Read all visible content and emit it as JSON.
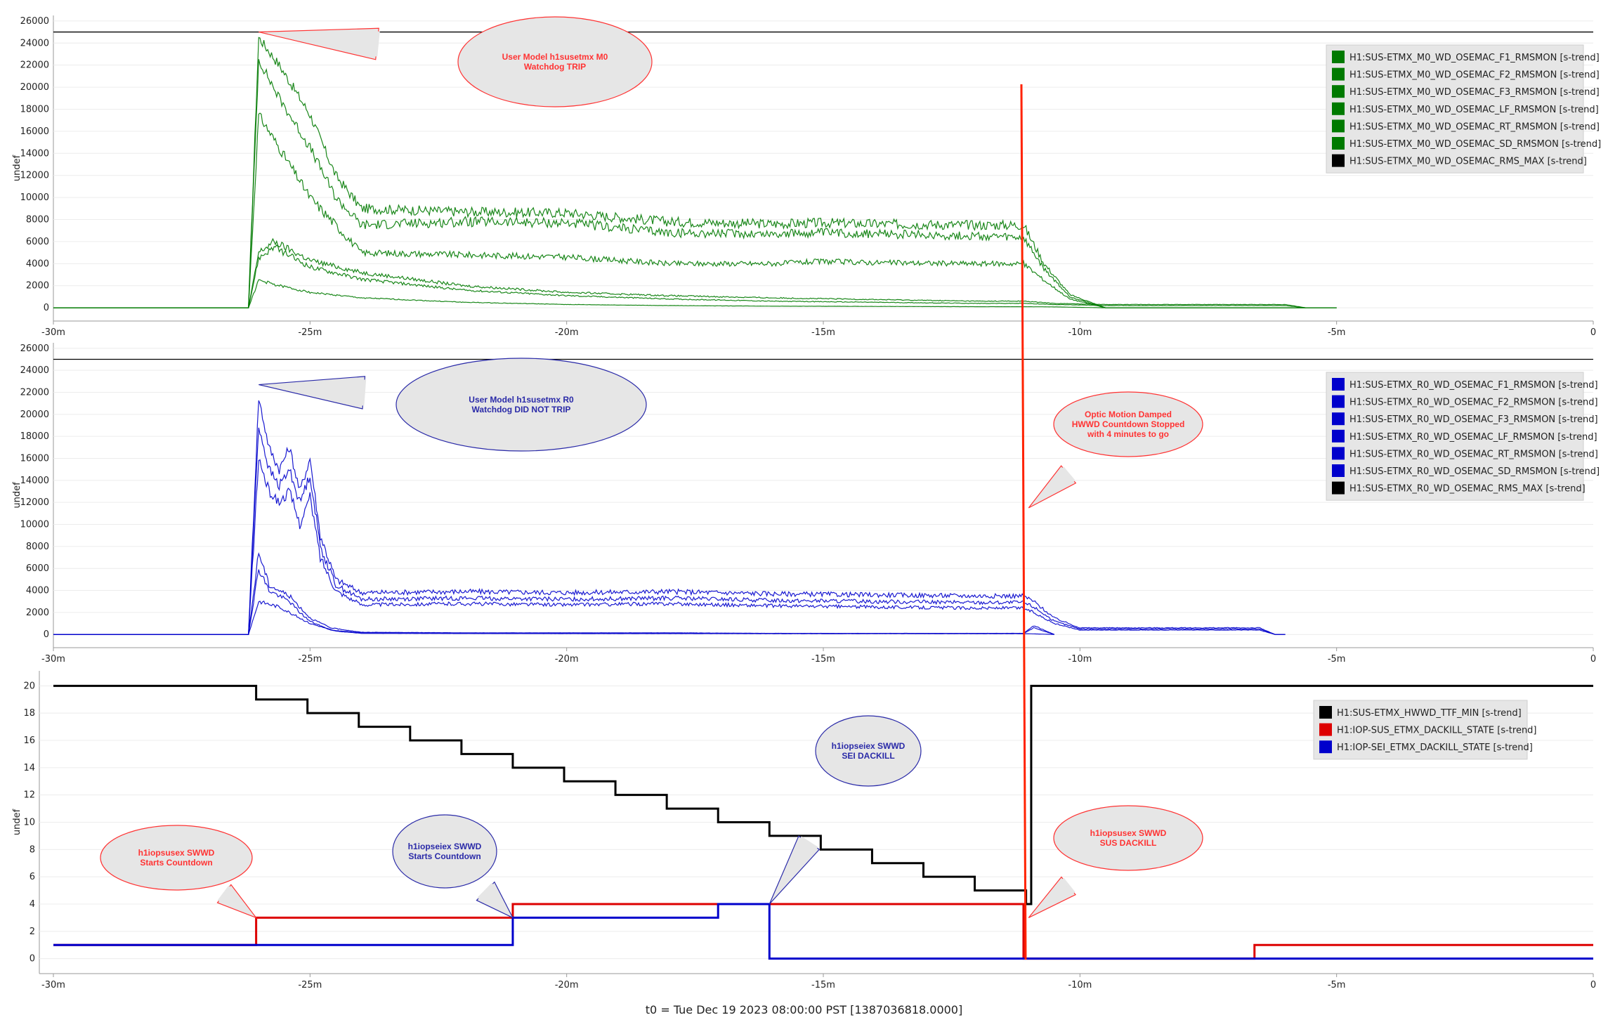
{
  "footer": "t0 = Tue Dec 19 2023 08:00:00 PST [1387036818.0000]",
  "chart_data": [
    {
      "type": "line",
      "panel": "top",
      "ylabel": "undef",
      "x_ticks": [
        "-30m",
        "-25m",
        "-20m",
        "-15m",
        "-10m",
        "-5m",
        "0"
      ],
      "xlim": [
        -30,
        0
      ],
      "y_ticks": [
        "0",
        "2000",
        "4000",
        "6000",
        "8000",
        "10000",
        "12000",
        "14000",
        "16000",
        "18000",
        "20000",
        "22000",
        "24000",
        "26000"
      ],
      "ylim": [
        -1200,
        26500
      ],
      "reference_line": 25000,
      "legend_position": "top-right",
      "series": [
        {
          "name": "H1:SUS-ETMX_M0_WD_OSEMAC_F1_RMSMON [s-trend]",
          "color": "#007a00",
          "x": [
            -30,
            -26.2,
            -26,
            -25.6,
            -25,
            -24.5,
            -24,
            -22,
            -20,
            -18,
            -16,
            -15,
            -14,
            -12,
            -11.1,
            -10.7,
            -10.2,
            -9.5,
            -6,
            -5
          ],
          "y": [
            0,
            0,
            24500,
            22000,
            17500,
            12000,
            9000,
            8700,
            8600,
            7800,
            7600,
            7700,
            7600,
            7500,
            7500,
            4000,
            1200,
            0,
            0,
            0
          ]
        },
        {
          "name": "H1:SUS-ETMX_M0_WD_OSEMAC_F2_RMSMON [s-trend]",
          "color": "#007a00",
          "x": [
            -30,
            -26.2,
            -26,
            -25.6,
            -25,
            -24.5,
            -24,
            -22,
            -20,
            -18,
            -16,
            -15,
            -14,
            -12,
            -11.1,
            -10.7,
            -10.2,
            -9.5,
            -6,
            -5
          ],
          "y": [
            0,
            0,
            22500,
            19000,
            14500,
            10000,
            7500,
            7800,
            7700,
            6800,
            6700,
            6800,
            6700,
            6500,
            6300,
            3500,
            1000,
            0,
            0,
            0
          ]
        },
        {
          "name": "H1:SUS-ETMX_M0_WD_OSEMAC_F3_RMSMON [s-trend]",
          "color": "#007a00",
          "x": [
            -30,
            -26.2,
            -26,
            -25.6,
            -25,
            -24.5,
            -24,
            -22,
            -20,
            -18,
            -16,
            -15,
            -14,
            -12,
            -11.1,
            -10.7,
            -10.2,
            -9.5,
            -6,
            -5
          ],
          "y": [
            0,
            0,
            17500,
            14500,
            10000,
            7500,
            5000,
            4800,
            4600,
            4000,
            4000,
            4200,
            4100,
            4000,
            4000,
            2500,
            800,
            0,
            0,
            0
          ]
        },
        {
          "name": "H1:SUS-ETMX_M0_WD_OSEMAC_LF_RMSMON [s-trend]",
          "color": "#007a00",
          "x": [
            -30,
            -26.2,
            -26,
            -25.7,
            -25,
            -24,
            -22,
            -20,
            -18,
            -16,
            -12,
            -11.1,
            -10.5,
            -9.5,
            -6,
            -5.6
          ],
          "y": [
            0,
            0,
            5000,
            6000,
            4300,
            3200,
            2000,
            1400,
            1100,
            900,
            600,
            600,
            400,
            300,
            300,
            0
          ]
        },
        {
          "name": "H1:SUS-ETMX_M0_WD_OSEMAC_RT_RMSMON [s-trend]",
          "color": "#007a00",
          "x": [
            -30,
            -26.2,
            -26,
            -25.7,
            -25,
            -24,
            -22,
            -20,
            -18,
            -16,
            -12,
            -11.1,
            -10.5,
            -9.5,
            -6,
            -5.6
          ],
          "y": [
            0,
            0,
            4500,
            5500,
            3700,
            2600,
            1600,
            1100,
            800,
            600,
            400,
            400,
            300,
            200,
            200,
            0
          ]
        },
        {
          "name": "H1:SUS-ETMX_M0_WD_OSEMAC_SD_RMSMON [s-trend]",
          "color": "#007a00",
          "x": [
            -30,
            -26.2,
            -26,
            -25.6,
            -25,
            -24,
            -22,
            -20,
            -18,
            -16,
            -12,
            -11.1,
            -10.5,
            -9.5
          ],
          "y": [
            0,
            0,
            2500,
            2000,
            1400,
            900,
            500,
            300,
            200,
            150,
            100,
            100,
            80,
            0
          ]
        },
        {
          "name": "H1:SUS-ETMX_M0_WD_OSEMAC_RMS_MAX [s-trend]",
          "color": "#000000",
          "x": [],
          "y": []
        }
      ]
    },
    {
      "type": "line",
      "panel": "middle",
      "ylabel": "undef",
      "x_ticks": [
        "-30m",
        "-25m",
        "-20m",
        "-15m",
        "-10m",
        "-5m",
        "0"
      ],
      "xlim": [
        -30,
        0
      ],
      "y_ticks": [
        "0",
        "2000",
        "4000",
        "6000",
        "8000",
        "10000",
        "12000",
        "14000",
        "16000",
        "18000",
        "20000",
        "22000",
        "24000",
        "26000"
      ],
      "ylim": [
        -1200,
        26500
      ],
      "reference_line": 25000,
      "legend_position": "top-right",
      "series": [
        {
          "name": "H1:SUS-ETMX_R0_WD_OSEMAC_F1_RMSMON [s-trend]",
          "color": "#0000cc",
          "x": [
            -30,
            -26.2,
            -26,
            -25.8,
            -25.6,
            -25.4,
            -25.2,
            -25,
            -24.8,
            -24.5,
            -24,
            -22,
            -20,
            -18,
            -16,
            -14,
            -12,
            -11.1,
            -10.9,
            -10.5,
            -10,
            -8,
            -6.5,
            -6.2,
            -6
          ],
          "y": [
            0,
            0,
            21500,
            17000,
            15000,
            17000,
            13000,
            16000,
            9000,
            5000,
            3800,
            3900,
            3800,
            3900,
            3700,
            3600,
            3500,
            3500,
            3000,
            1500,
            600,
            600,
            600,
            0,
            0
          ]
        },
        {
          "name": "H1:SUS-ETMX_R0_WD_OSEMAC_F2_RMSMON [s-trend]",
          "color": "#0000cc",
          "x": [
            -30,
            -26.2,
            -26,
            -25.8,
            -25.6,
            -25.4,
            -25.2,
            -25,
            -24.8,
            -24.5,
            -24,
            -22,
            -20,
            -18,
            -16,
            -14,
            -12,
            -11.1,
            -10.9,
            -10.5,
            -10,
            -8,
            -6.5,
            -6.2,
            -6
          ],
          "y": [
            0,
            0,
            19000,
            15000,
            13500,
            15000,
            12000,
            14500,
            8000,
            4500,
            3200,
            3300,
            3200,
            3300,
            3100,
            3000,
            2900,
            2900,
            2500,
            1200,
            500,
            500,
            500,
            0,
            0
          ]
        },
        {
          "name": "H1:SUS-ETMX_R0_WD_OSEMAC_F3_RMSMON [s-trend]",
          "color": "#0000cc",
          "x": [
            -30,
            -26.2,
            -26,
            -25.8,
            -25.6,
            -25.4,
            -25.2,
            -25,
            -24.8,
            -24.5,
            -24,
            -22,
            -20,
            -18,
            -16,
            -14,
            -12,
            -11.1,
            -10.9,
            -10.5,
            -10,
            -8,
            -6.5,
            -6.2,
            -6
          ],
          "y": [
            0,
            0,
            16000,
            13000,
            12000,
            13000,
            10000,
            12500,
            7000,
            4000,
            2700,
            2800,
            2700,
            2800,
            2600,
            2500,
            2400,
            2400,
            2000,
            1000,
            400,
            400,
            400,
            0,
            0
          ]
        },
        {
          "name": "H1:SUS-ETMX_R0_WD_OSEMAC_LF_RMSMON [s-trend]",
          "color": "#0000cc",
          "x": [
            -30,
            -26.2,
            -26,
            -25.8,
            -25.6,
            -25.4,
            -25.2,
            -25,
            -24.6,
            -24,
            -22,
            -20,
            -18,
            -16,
            -12,
            -11.1,
            -10.9,
            -10.5
          ],
          "y": [
            0,
            0,
            7500,
            4500,
            4000,
            3500,
            2500,
            1500,
            600,
            200,
            150,
            150,
            150,
            100,
            100,
            100,
            800,
            0
          ]
        },
        {
          "name": "H1:SUS-ETMX_R0_WD_OSEMAC_RT_RMSMON [s-trend]",
          "color": "#0000cc",
          "x": [
            -30,
            -26.2,
            -26,
            -25.8,
            -25.6,
            -25.4,
            -25.2,
            -25,
            -24.6,
            -24,
            -22,
            -20,
            -18,
            -16,
            -12,
            -11.1,
            -10.9,
            -10.5
          ],
          "y": [
            0,
            0,
            6000,
            4000,
            3500,
            3000,
            2000,
            1200,
            400,
            150,
            100,
            100,
            100,
            80,
            80,
            80,
            600,
            0
          ]
        },
        {
          "name": "H1:SUS-ETMX_R0_WD_OSEMAC_SD_RMSMON [s-trend]",
          "color": "#0000cc",
          "x": [
            -30,
            -26.2,
            -26,
            -25.6,
            -25,
            -24.5,
            -24,
            -20,
            -16,
            -12,
            -11.1,
            -10.5
          ],
          "y": [
            0,
            0,
            3000,
            2500,
            1000,
            300,
            100,
            80,
            80,
            80,
            80,
            0
          ]
        },
        {
          "name": "H1:SUS-ETMX_R0_WD_OSEMAC_RMS_MAX [s-trend]",
          "color": "#000000",
          "x": [],
          "y": []
        }
      ]
    },
    {
      "type": "line",
      "panel": "bottom",
      "ylabel": "undef",
      "x_ticks": [
        "-30m",
        "-25m",
        "-20m",
        "-15m",
        "-10m",
        "-5m",
        "0"
      ],
      "xlim": [
        -30,
        0
      ],
      "y_ticks": [
        "0",
        "2",
        "4",
        "6",
        "8",
        "10",
        "12",
        "14",
        "16",
        "18",
        "20"
      ],
      "ylim": [
        -1.1,
        21.1
      ],
      "legend_position": "top-right",
      "series": [
        {
          "name": "H1:SUS-ETMX_HWWD_TTF_MIN [s-trend]",
          "color": "#000000",
          "step": true,
          "x": [
            -30,
            -26.05,
            -25.05,
            -24.05,
            -23.05,
            -22.05,
            -21.05,
            -20.05,
            -19.05,
            -18.05,
            -17.05,
            -16.05,
            -15.05,
            -14.05,
            -13.05,
            -12.05,
            -11.05,
            -10.95,
            -10.95,
            0
          ],
          "y": [
            20,
            19,
            18,
            17,
            16,
            15,
            14,
            13,
            12,
            11,
            10,
            9,
            8,
            7,
            6,
            5,
            4,
            4,
            20,
            20
          ]
        },
        {
          "name": "H1:IOP-SUS_ETMX_DACKILL_STATE [s-trend]",
          "color": "#dd0000",
          "step": true,
          "x": [
            -30,
            -26.05,
            -21.05,
            -11.1,
            -6.6,
            0
          ],
          "y": [
            1,
            3,
            4,
            0,
            1,
            1
          ]
        },
        {
          "name": "H1:IOP-SEI_ETMX_DACKILL_STATE [s-trend]",
          "color": "#0000cc",
          "step": true,
          "x": [
            -30,
            -21.05,
            -17.05,
            -16.05,
            0
          ],
          "y": [
            1,
            3,
            4,
            0,
            0
          ]
        }
      ]
    }
  ],
  "event_line": {
    "x": -11.1,
    "color": "#ff2200"
  },
  "annotations": [
    {
      "text": "User Model h1susetmx M0\nWatchdog TRIP",
      "color": "#ff3333",
      "panel": 0,
      "anchor_x": -26.0,
      "anchor_y": 25000
    },
    {
      "text": "User Model h1susetmx R0\nWatchdog DID NOT TRIP",
      "color": "#2a2aa8",
      "panel": 1,
      "anchor_x": -26.0,
      "anchor_y": 22700
    },
    {
      "text": "Optic Motion Damped\nHWWD Countdown Stopped\nwith 4 minutes to go",
      "color": "#ff3333",
      "panel": 1,
      "anchor_x": -11.0,
      "anchor_y": 11500
    },
    {
      "text": "h1iopsusex SWWD\nStarts Countdown",
      "color": "#ff3333",
      "panel": 2,
      "anchor_x": -26.05,
      "anchor_y": 3
    },
    {
      "text": "h1iopseiex SWWD\nStarts Countdown",
      "color": "#2a2aa8",
      "panel": 2,
      "anchor_x": -21.05,
      "anchor_y": 3
    },
    {
      "text": "h1iopseiex SWWD\nSEI DACKILL",
      "color": "#2a2aa8",
      "panel": 2,
      "anchor_x": -16.05,
      "anchor_y": 4
    },
    {
      "text": "h1iopsusex SWWD\nSUS DACKILL",
      "color": "#ff3333",
      "panel": 2,
      "anchor_x": -11.0,
      "anchor_y": 3
    }
  ]
}
